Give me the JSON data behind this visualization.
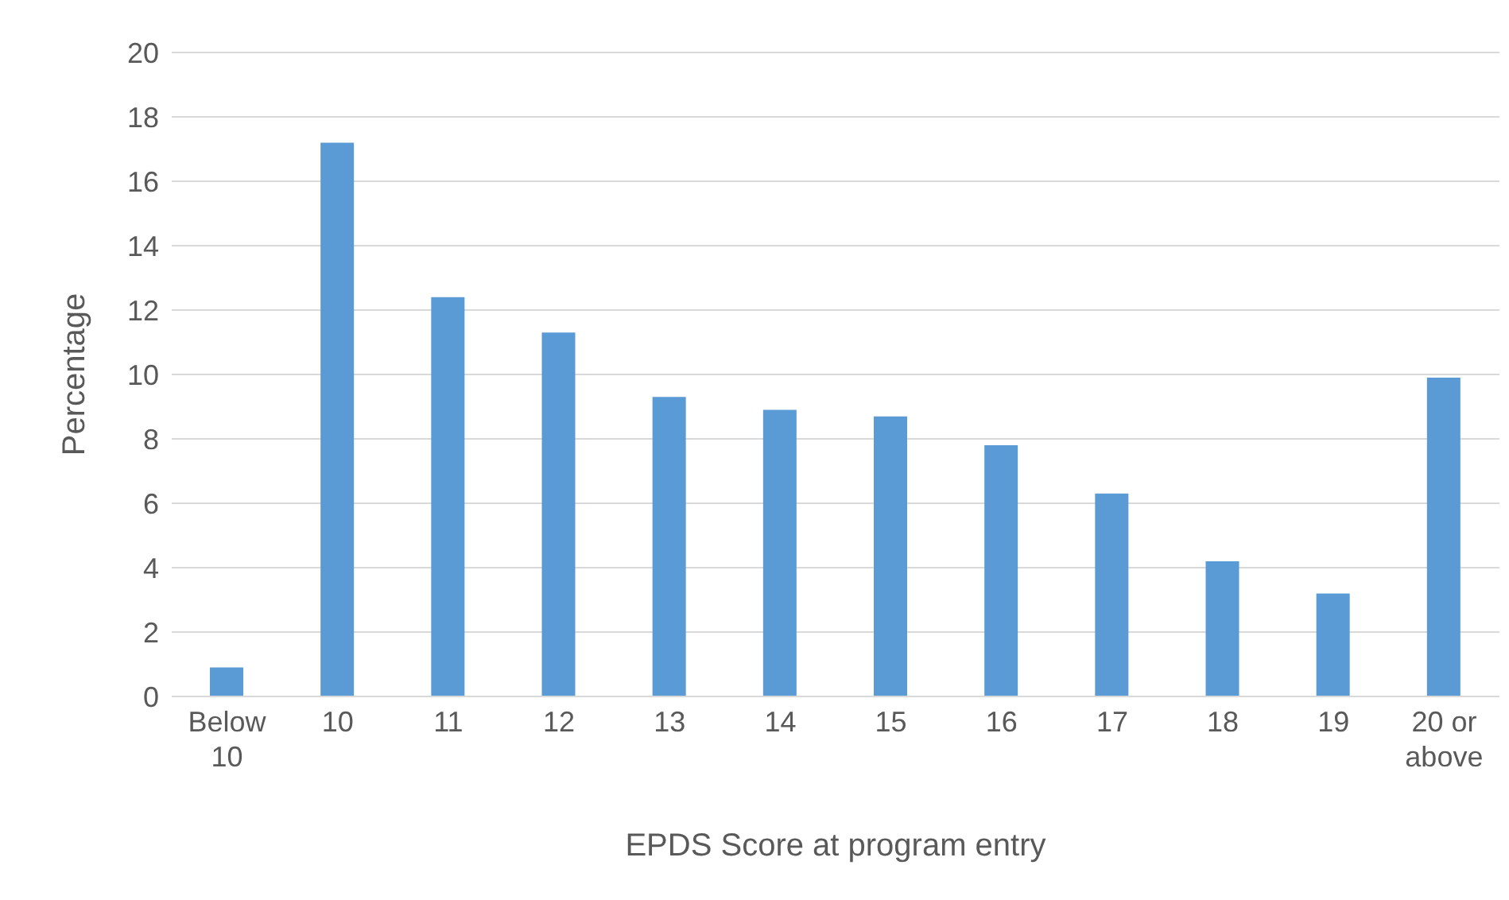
{
  "chart_data": {
    "type": "bar",
    "xlabel": "EPDS Score at program entry",
    "ylabel": "Percentage",
    "categories": [
      "Below 10",
      "10",
      "11",
      "12",
      "13",
      "14",
      "15",
      "16",
      "17",
      "18",
      "19",
      "20 or above"
    ],
    "values": [
      0.9,
      17.2,
      12.4,
      11.3,
      9.3,
      8.9,
      8.7,
      7.8,
      6.3,
      4.2,
      3.2,
      9.9
    ],
    "color": "#5b9bd5",
    "ylim": [
      0,
      20
    ],
    "yticks": [
      0,
      2,
      4,
      6,
      8,
      10,
      12,
      14,
      16,
      18,
      20
    ],
    "grid": "y",
    "legend": false
  }
}
